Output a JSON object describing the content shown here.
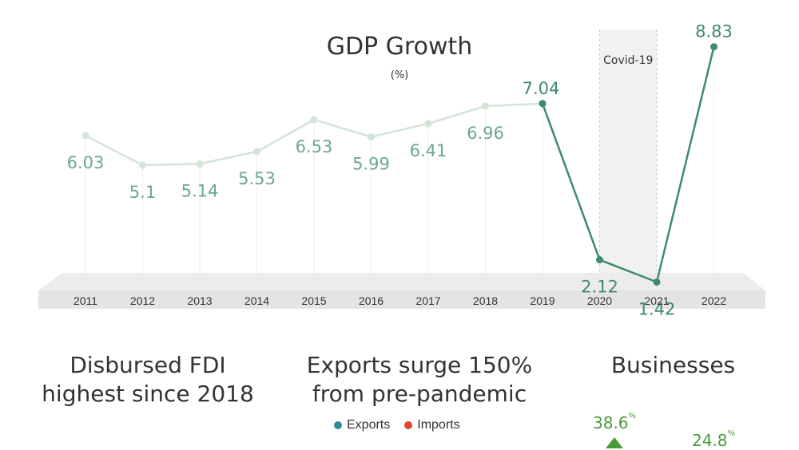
{
  "chart_data": {
    "type": "line",
    "title": "GDP Growth",
    "unit": "(%)",
    "x": [
      "2011",
      "2012",
      "2013",
      "2014",
      "2015",
      "2016",
      "2017",
      "2018",
      "2019",
      "2020",
      "2021",
      "2022"
    ],
    "values": [
      6.03,
      5.1,
      5.14,
      5.53,
      6.53,
      5.99,
      6.41,
      6.96,
      7.04,
      2.12,
      1.42,
      8.83
    ],
    "value_labels": [
      "6.03",
      "5.1",
      "5.14",
      "5.53",
      "6.53",
      "5.99",
      "6.41",
      "6.96",
      "7.04",
      "2.12",
      "1.42",
      "8.83"
    ],
    "ylim": [
      0,
      10
    ],
    "grid": "vertical",
    "highlight_range": {
      "from": "2020",
      "to": "2021",
      "label": "Covid-19"
    },
    "emphasis_from": "2019",
    "colors": {
      "muted_line": "#d2e4d7",
      "main_line": "#3f8a6c",
      "muted_label": "#6aa88d",
      "band": "#f0f2f0",
      "base": "#e4e4e4"
    }
  },
  "headlines": {
    "fdi": [
      "Disbursed FDI",
      "highest since 2018"
    ],
    "exports": [
      "Exports surge 150%",
      "from pre-pandemic"
    ],
    "businesses": "Businesses"
  },
  "legend": [
    {
      "label": "Exports",
      "color": "#2e8b9e"
    },
    {
      "label": "Imports",
      "color": "#e0462a"
    }
  ],
  "businesses": {
    "value1": "38.6",
    "value2": "24.8",
    "unit": "%"
  }
}
